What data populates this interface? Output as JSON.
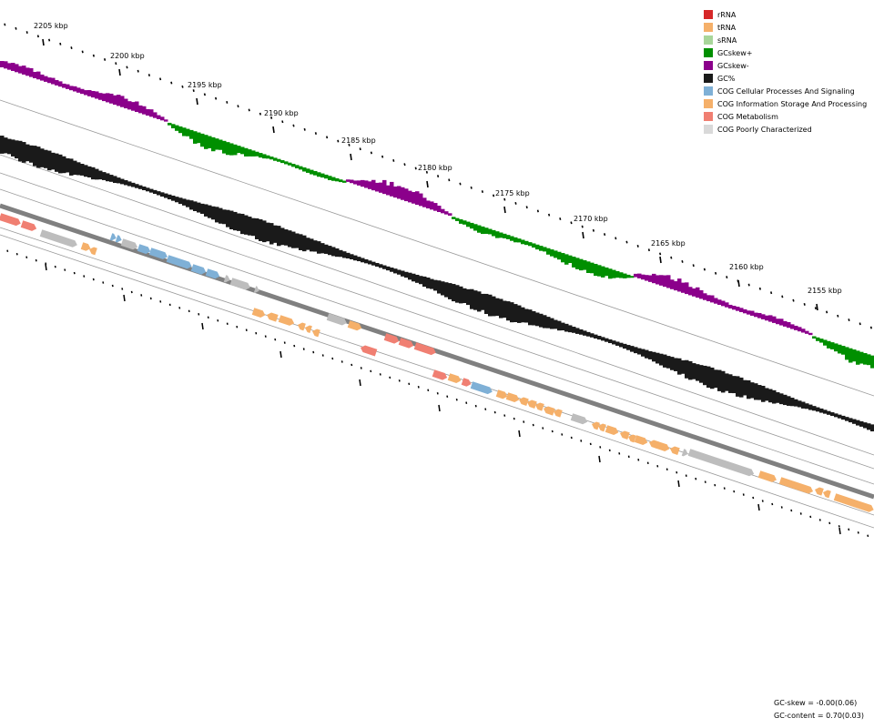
{
  "ticks": [
    {
      "label": "2205 kbp"
    },
    {
      "label": "2200 kbp"
    },
    {
      "label": "2195 kbp"
    },
    {
      "label": "2190 kbp"
    },
    {
      "label": "2185 kbp"
    },
    {
      "label": "2180 kbp"
    },
    {
      "label": "2175 kbp"
    },
    {
      "label": "2170 kbp"
    },
    {
      "label": "2165 kbp"
    },
    {
      "label": "2160 kbp"
    },
    {
      "label": "2155 kbp"
    }
  ],
  "legend": [
    {
      "label": "rRNA",
      "color": "#d62728"
    },
    {
      "label": "tRNA",
      "color": "#f5b06a"
    },
    {
      "label": "sRNA",
      "color": "#a8d69a"
    },
    {
      "label": "GCskew+",
      "color": "#008f00"
    },
    {
      "label": "GCskew-",
      "color": "#8b008b"
    },
    {
      "label": "GC%",
      "color": "#1a1a1a"
    },
    {
      "label": "COG Cellular Processes And Signaling",
      "color": "#7fb0d6"
    },
    {
      "label": "COG Information Storage And Processing",
      "color": "#f5b06a"
    },
    {
      "label": "COG Metabolism",
      "color": "#f07f72"
    },
    {
      "label": "COG Poorly Characterized",
      "color": "#d9d9d9"
    }
  ],
  "stats": {
    "gc_skew": "GC-skew = -0.00(0.06)",
    "gc_content": "GC-content = 0.70(0.03)"
  }
}
